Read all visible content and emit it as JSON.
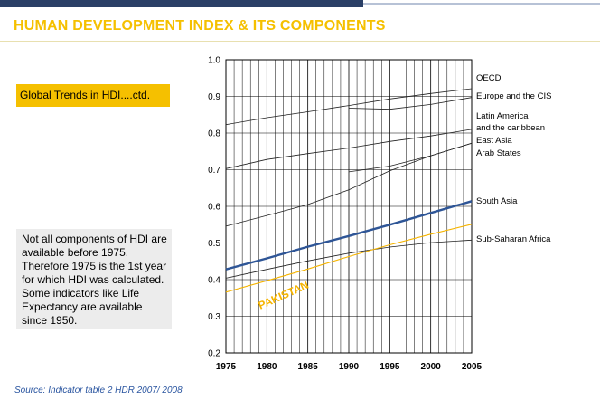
{
  "slide": {
    "title": "HUMAN DEVELOPMENT INDEX & ITS COMPONENTS",
    "subtitle": "Global Trends in HDI....ctd.",
    "note": "Not all components of HDI are available before 1975. Therefore 1975 is the 1st year for which HDI was calculated. Some indicators like Life Expectancy are available since 1950.",
    "source": "Source: Indicator table 2 HDR 2007/ 2008"
  },
  "colors": {
    "title": "#f5c000",
    "subtitle_bg": "#f5c000",
    "note_bg": "#ececec",
    "band": "#2a3f66",
    "south_asia": "#2e5596",
    "pakistan": "#f5b400",
    "line": "#222222",
    "source": "#2a55a0"
  },
  "chart_data": {
    "type": "line",
    "title": "",
    "xlabel": "",
    "ylabel": "",
    "x": [
      1975,
      1980,
      1985,
      1990,
      1995,
      2000,
      2005
    ],
    "xlim": [
      1975,
      2005
    ],
    "ylim": [
      0.2,
      1.0
    ],
    "yticks": [
      1.0,
      0.9,
      0.8,
      0.7,
      0.6,
      0.5,
      0.4,
      0.3,
      0.2
    ],
    "ytick_labels": [
      "1.0",
      "0.9",
      "0.8",
      "0.7",
      "0.6",
      "0.5",
      "0.4",
      "0.3",
      "0.2"
    ],
    "xtick_labels": [
      "1975",
      "1980",
      "1985",
      "1990",
      "1995",
      "2000",
      "2005"
    ],
    "grid": true,
    "series": [
      {
        "name": "OECD",
        "label": "OECD",
        "x": [
          1975,
          1980,
          1985,
          1990,
          1995,
          2000,
          2005
        ],
        "values": [
          0.823,
          0.842,
          0.858,
          0.875,
          0.893,
          0.908,
          0.921
        ]
      },
      {
        "name": "Europe and the CIS",
        "label": "Europe and the CIS",
        "x": [
          1990,
          1995,
          2000,
          2005
        ],
        "values": [
          0.868,
          0.865,
          0.878,
          0.897
        ]
      },
      {
        "name": "Latin America and the caribbean",
        "label_lines": [
          "Latin America",
          "and the caribbean"
        ],
        "x": [
          1975,
          1980,
          1985,
          1990,
          1995,
          2000,
          2005
        ],
        "values": [
          0.703,
          0.728,
          0.744,
          0.759,
          0.777,
          0.792,
          0.81
        ]
      },
      {
        "name": "East Asia",
        "label": "East Asia",
        "x": [
          1975,
          1980,
          1985,
          1990,
          1995,
          2000,
          2005
        ],
        "values": [
          0.546,
          0.575,
          0.605,
          0.645,
          0.697,
          0.738,
          0.772
        ]
      },
      {
        "name": "Arab States",
        "label": "Arab States",
        "x": [
          1990,
          1995,
          2000,
          2005
        ],
        "values": [
          0.694,
          0.71,
          0.738,
          0.772
        ]
      },
      {
        "name": "South Asia",
        "label": "South Asia",
        "x": [
          1975,
          1980,
          1985,
          1990,
          1995,
          2000,
          2005
        ],
        "values": [
          0.428,
          0.458,
          0.49,
          0.519,
          0.55,
          0.582,
          0.614
        ]
      },
      {
        "name": "Sub-Saharan Africa",
        "label": "Sub-Saharan Africa",
        "x": [
          1975,
          1980,
          1985,
          1990,
          1995,
          2000,
          2005
        ],
        "values": [
          0.404,
          0.428,
          0.451,
          0.472,
          0.489,
          0.501,
          0.508
        ]
      },
      {
        "name": "Pakistan",
        "label": "PAKISTAN",
        "x": [
          1975,
          1980,
          1985,
          1990,
          1995,
          2000,
          2005
        ],
        "values": [
          0.366,
          0.397,
          0.429,
          0.463,
          0.495,
          0.524,
          0.551
        ]
      }
    ]
  }
}
